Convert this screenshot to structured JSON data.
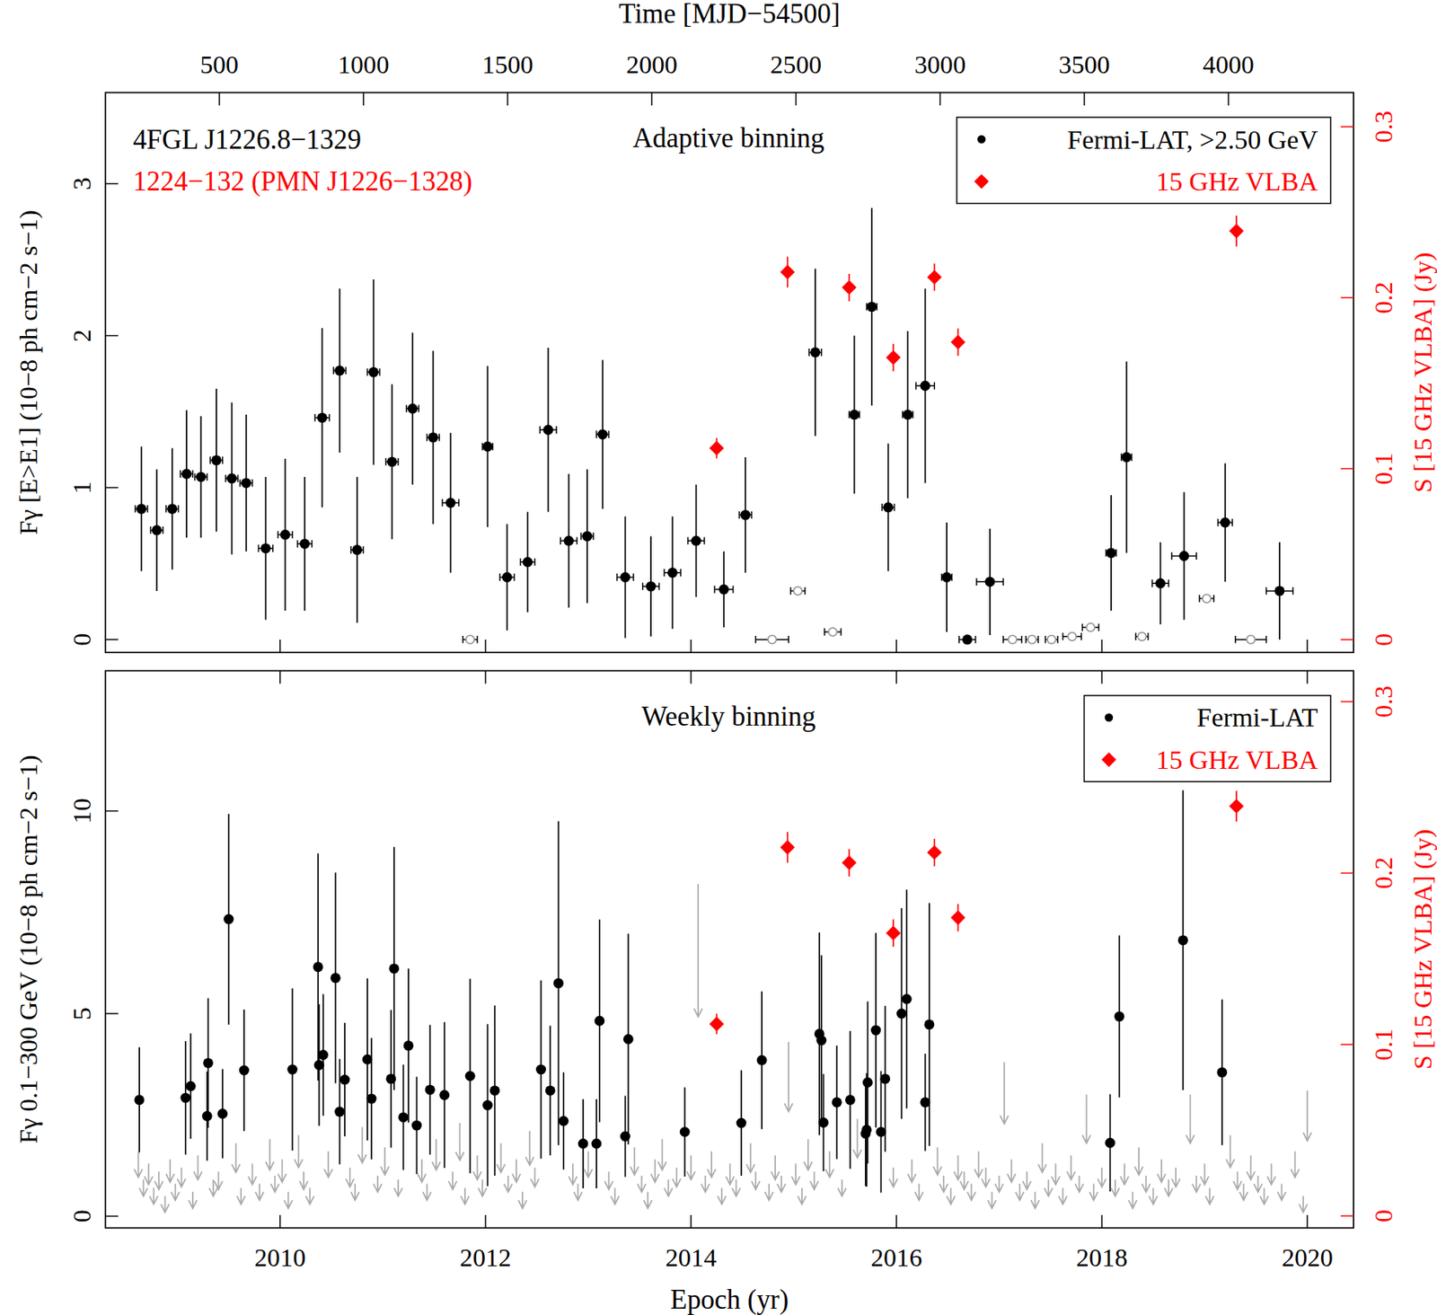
{
  "chart_data": [
    {
      "type": "scatter",
      "title": "Adaptive binning",
      "annotations": [
        {
          "text": "4FGL J1226.8−1329",
          "color": "#000000"
        },
        {
          "text": "1224−132 (PMN J1226−1328)",
          "color": "#ff0000"
        }
      ],
      "x2_label": "Time [MJD−54500]",
      "y_label": "Fγ [E>E1] (10−8 ph cm−2 s−1)",
      "y2_label": "S [15 GHz VLBA] (Jy)",
      "xlim": [
        2008.3,
        2020.45
      ],
      "xticks": [
        2010,
        2012,
        2014,
        2016,
        2018,
        2020
      ],
      "x2lim": [
        105,
        4434
      ],
      "x2ticks": [
        500,
        1000,
        1500,
        2000,
        2500,
        3000,
        3500,
        4000
      ],
      "ylim": [
        -0.085,
        3.6
      ],
      "yticks": [
        0,
        1,
        2,
        3
      ],
      "y2lim": [
        -0.0075,
        0.32
      ],
      "y2ticks": [
        0,
        0.1,
        0.2,
        0.3
      ],
      "tick_labels": "y",
      "legend": "top-right",
      "series": [
        {
          "name": "Fermi-LAT, >2.50 GeV",
          "color": "#000000",
          "marker": "circle",
          "x": [
            2008.65,
            2008.8,
            2008.95,
            2009.09,
            2009.23,
            2009.38,
            2009.53,
            2009.67,
            2009.86,
            2010.05,
            2010.24,
            2010.41,
            2010.58,
            2010.75,
            2010.91,
            2011.09,
            2011.29,
            2011.49,
            2011.66,
            2012.02,
            2012.21,
            2012.41,
            2012.61,
            2012.81,
            2012.99,
            2013.14,
            2013.36,
            2013.61,
            2013.82,
            2014.05,
            2014.32,
            2014.53,
            2015.21,
            2015.59,
            2015.76,
            2015.92,
            2016.11,
            2016.28,
            2016.49,
            2016.69,
            2016.91,
            2018.09,
            2018.24,
            2018.57,
            2018.8,
            2019.2,
            2019.73
          ],
          "values": [
            0.86,
            0.72,
            0.86,
            1.09,
            1.07,
            1.18,
            1.06,
            1.03,
            0.6,
            0.69,
            0.63,
            1.46,
            1.77,
            0.59,
            1.76,
            1.17,
            1.52,
            1.33,
            0.9,
            1.27,
            0.41,
            0.51,
            1.38,
            0.65,
            0.68,
            1.35,
            0.41,
            0.35,
            0.44,
            0.65,
            0.33,
            0.82,
            1.89,
            1.48,
            2.19,
            0.87,
            1.48,
            1.67,
            0.41,
            0.0,
            0.38,
            0.57,
            1.2,
            0.37,
            0.55,
            0.77,
            0.32
          ],
          "errors": [
            0.41,
            0.4,
            0.4,
            0.42,
            0.4,
            0.47,
            0.5,
            0.45,
            0.47,
            0.5,
            0.44,
            0.59,
            0.54,
            0.48,
            0.61,
            0.51,
            0.5,
            0.57,
            0.46,
            0.53,
            0.35,
            0.33,
            0.54,
            0.44,
            0.44,
            0.49,
            0.4,
            0.33,
            0.37,
            0.37,
            0.25,
            0.38,
            0.55,
            0.52,
            0.65,
            0.42,
            0.55,
            0.64,
            0.36,
            0,
            0.35,
            0.38,
            0.63,
            0.27,
            0.42,
            0.39,
            0.32
          ],
          "x_errors": [
            0.06,
            0.06,
            0.06,
            0.06,
            0.06,
            0.06,
            0.06,
            0.06,
            0.07,
            0.07,
            0.07,
            0.07,
            0.06,
            0.06,
            0.06,
            0.06,
            0.06,
            0.06,
            0.08,
            0.05,
            0.07,
            0.07,
            0.08,
            0.08,
            0.06,
            0.06,
            0.08,
            0.08,
            0.08,
            0.08,
            0.09,
            0.06,
            0.06,
            0.05,
            0.05,
            0.06,
            0.05,
            0.09,
            0.05,
            0.08,
            0.13,
            0.05,
            0.05,
            0.08,
            0.12,
            0.07,
            0.13
          ]
        },
        {
          "color": "#999999",
          "marker": "open-circle",
          "x": [
            2011.85,
            2014.79,
            2015.04,
            2015.38,
            2017.13,
            2017.32,
            2017.51,
            2017.71,
            2017.89,
            2018.39,
            2019.02,
            2019.45
          ],
          "values": [
            0,
            0,
            0.32,
            0.05,
            0,
            0,
            0,
            0.02,
            0.08,
            0.02,
            0.27,
            0
          ],
          "x_errors": [
            0.07,
            0.16,
            0.07,
            0.08,
            0.09,
            0.06,
            0.06,
            0.09,
            0.08,
            0.06,
            0.07,
            0.15
          ]
        },
        {
          "name": "15 GHz VLBA",
          "color": "#ff0000",
          "marker": "diamond",
          "axis": "y2",
          "x": [
            2014.25,
            2014.94,
            2015.54,
            2015.97,
            2016.37,
            2016.6,
            2019.31
          ],
          "values": [
            0.112,
            0.215,
            0.206,
            0.165,
            0.212,
            0.174,
            0.239
          ],
          "errors": [
            0.006,
            0.009,
            0.008,
            0.008,
            0.008,
            0.008,
            0.009
          ]
        }
      ]
    },
    {
      "type": "scatter",
      "title": "Weekly binning",
      "x_label": "Epoch (yr)",
      "y_label": "Fγ 0.1−300 GeV (10−8 ph cm−2 s−1)",
      "y2_label": "S [15 GHz VLBA] (Jy)",
      "xlim": [
        2008.3,
        2020.45
      ],
      "xticks": [
        2010,
        2012,
        2014,
        2016,
        2018,
        2020
      ],
      "ylim": [
        -0.29,
        13.46
      ],
      "yticks": [
        0,
        5,
        10
      ],
      "y2lim": [
        -0.007,
        0.318
      ],
      "y2ticks": [
        0,
        0.1,
        0.2,
        0.3
      ],
      "legend": "top-right",
      "series": [
        {
          "name": "Fermi-LAT",
          "color": "#000000",
          "marker": "circle",
          "x": [
            2008.63,
            2009.08,
            2009.13,
            2009.29,
            2009.3,
            2009.44,
            2009.5,
            2009.65,
            2010.12,
            2010.37,
            2010.38,
            2010.42,
            2010.54,
            2010.58,
            2010.63,
            2010.85,
            2010.89,
            2011.08,
            2011.11,
            2011.2,
            2011.25,
            2011.33,
            2011.46,
            2011.6,
            2011.85,
            2012.02,
            2012.09,
            2012.54,
            2012.63,
            2012.71,
            2012.76,
            2012.95,
            2013.08,
            2013.11,
            2013.36,
            2013.39,
            2013.94,
            2014.49,
            2014.69,
            2015.25,
            2015.27,
            2015.29,
            2015.42,
            2015.55,
            2015.7,
            2015.71,
            2015.72,
            2015.8,
            2015.85,
            2015.89,
            2016.05,
            2016.1,
            2016.28,
            2016.32,
            2018.08,
            2018.17,
            2018.79,
            2019.17
          ],
          "values": [
            2.87,
            2.92,
            3.21,
            2.47,
            3.78,
            2.53,
            7.33,
            3.6,
            3.62,
            6.15,
            3.73,
            3.98,
            5.88,
            2.58,
            3.37,
            3.87,
            2.9,
            3.39,
            6.11,
            2.44,
            4.21,
            2.24,
            3.12,
            2.99,
            3.46,
            2.74,
            3.1,
            3.62,
            3.1,
            5.75,
            2.35,
            1.79,
            1.79,
            4.82,
            1.97,
            4.37,
            2.08,
            2.3,
            3.85,
            4.5,
            4.34,
            2.31,
            2.81,
            2.87,
            2.04,
            2.13,
            3.3,
            4.59,
            2.08,
            3.39,
            5.0,
            5.36,
            2.81,
            4.73,
            1.81,
            4.93,
            6.81,
            3.55
          ],
          "errors": [
            1.3,
            1.4,
            1.3,
            1.1,
            1.6,
            1.1,
            2.6,
            1.5,
            2.0,
            2.8,
            1.5,
            1.5,
            2.6,
            1.3,
            1.4,
            2.0,
            1.5,
            1.7,
            3.0,
            1.3,
            1.9,
            1.2,
            1.6,
            1.8,
            2.4,
            2.0,
            2.1,
            2.2,
            1.6,
            4.0,
            1.2,
            1.1,
            1.1,
            2.5,
            1.0,
            2.6,
            1.1,
            1.3,
            1.7,
            2.5,
            2.1,
            1.2,
            1.4,
            1.7,
            1.3,
            1.4,
            2.0,
            2.4,
            1.5,
            1.8,
            2.6,
            2.7,
            1.2,
            3.0,
            1.2,
            2.0,
            3.7,
            1.8
          ]
        },
        {
          "color": "#aaaaaa",
          "marker": "arrow",
          "x": [
            2008.62,
            2008.67,
            2008.72,
            2008.77,
            2008.82,
            2008.88,
            2008.93,
            2008.98,
            2009.04,
            2009.15,
            2009.2,
            2009.35,
            2009.4,
            2009.57,
            2009.62,
            2009.73,
            2009.8,
            2009.9,
            2009.95,
            2010.02,
            2010.08,
            2010.18,
            2010.23,
            2010.29,
            2010.47,
            2010.68,
            2010.73,
            2010.8,
            2010.95,
            2011.02,
            2011.15,
            2011.38,
            2011.43,
            2011.52,
            2011.68,
            2011.75,
            2011.8,
            2011.92,
            2011.97,
            2012.15,
            2012.22,
            2012.3,
            2012.36,
            2012.43,
            2012.48,
            2012.85,
            2012.9,
            2013.0,
            2013.2,
            2013.26,
            2013.45,
            2013.52,
            2013.58,
            2013.65,
            2013.72,
            2013.78,
            2013.86,
            2014.0,
            2014.07,
            2014.14,
            2014.2,
            2014.3,
            2014.38,
            2014.44,
            2014.58,
            2014.63,
            2014.76,
            2014.82,
            2014.88,
            2014.95,
            2015.02,
            2015.08,
            2015.14,
            2015.2,
            2015.35,
            2015.47,
            2015.62,
            2015.97,
            2016.15,
            2016.22,
            2016.4,
            2016.46,
            2016.53,
            2016.6,
            2016.66,
            2016.73,
            2016.8,
            2016.87,
            2016.93,
            2017.0,
            2017.05,
            2017.12,
            2017.2,
            2017.27,
            2017.35,
            2017.42,
            2017.48,
            2017.55,
            2017.62,
            2017.7,
            2017.78,
            2017.85,
            2017.92,
            2018.0,
            2018.13,
            2018.22,
            2018.3,
            2018.36,
            2018.43,
            2018.5,
            2018.58,
            2018.65,
            2018.72,
            2018.86,
            2018.92,
            2019.0,
            2019.05,
            2019.25,
            2019.32,
            2019.38,
            2019.45,
            2019.52,
            2019.58,
            2019.65,
            2019.75,
            2019.88,
            2019.96,
            2020.0
          ],
          "values": [
            1.6,
            0.9,
            1.3,
            0.7,
            1.1,
            0.5,
            1.4,
            0.8,
            1.2,
            0.6,
            1.5,
            0.9,
            1.1,
            1.8,
            0.7,
            1.3,
            0.8,
            1.9,
            1.0,
            1.4,
            0.6,
            2.0,
            1.1,
            0.7,
            1.6,
            1.2,
            0.8,
            2.2,
            1.0,
            1.7,
            0.9,
            1.4,
            0.8,
            1.9,
            1.1,
            2.3,
            0.7,
            1.5,
            0.9,
            1.8,
            1.0,
            1.4,
            0.6,
            2.1,
            1.2,
            1.3,
            0.8,
            1.6,
            1.1,
            0.7,
            1.7,
            1.0,
            0.6,
            1.4,
            1.9,
            0.9,
            1.2,
            1.5,
            8.2,
            1.0,
            1.6,
            0.7,
            1.3,
            0.9,
            1.8,
            1.1,
            0.8,
            1.5,
            1.0,
            4.3,
            1.3,
            0.7,
            1.9,
            1.1,
            1.6,
            0.9,
            2.4,
            1.2,
            1.4,
            0.8,
            1.7,
            1.0,
            0.7,
            1.5,
            1.1,
            0.8,
            1.6,
            1.2,
            0.6,
            1.0,
            3.8,
            1.4,
            0.8,
            1.1,
            0.6,
            1.8,
            0.9,
            1.3,
            0.7,
            1.5,
            1.0,
            3.0,
            0.8,
            1.2,
            0.9,
            1.3,
            0.6,
            1.7,
            1.0,
            0.7,
            1.4,
            0.9,
            1.2,
            3.0,
            1.0,
            1.3,
            0.7,
            2.0,
            1.1,
            0.8,
            1.5,
            1.0,
            0.7,
            1.3,
            0.8,
            1.6,
            0.5,
            3.1
          ]
        },
        {
          "name": "15 GHz VLBA",
          "color": "#ff0000",
          "marker": "diamond",
          "axis": "y2",
          "x": [
            2014.25,
            2014.94,
            2015.54,
            2015.97,
            2016.37,
            2016.6,
            2019.31
          ],
          "values": [
            0.112,
            0.215,
            0.206,
            0.165,
            0.212,
            0.174,
            0.239
          ],
          "errors": [
            0.006,
            0.009,
            0.008,
            0.008,
            0.008,
            0.008,
            0.009
          ]
        }
      ]
    }
  ]
}
